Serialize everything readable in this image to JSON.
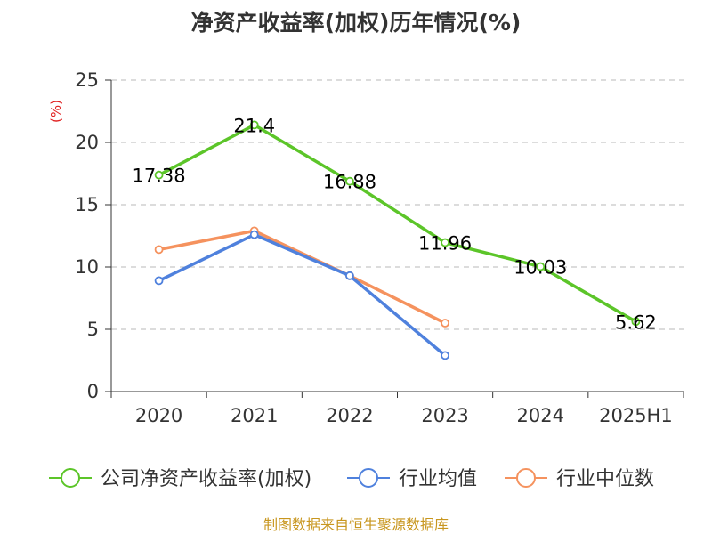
{
  "title": "净资产收益率(加权)历年情况(%)",
  "source": "制图数据来自恒生聚源数据库",
  "chart_data": {
    "type": "line",
    "ylabel": "(%)",
    "xlabel": "",
    "ylim": [
      0,
      25
    ],
    "yticks": [
      0,
      5,
      10,
      15,
      20,
      25
    ],
    "categories": [
      "2020",
      "2021",
      "2022",
      "2023",
      "2024",
      "2025H1"
    ],
    "grid": true,
    "legend_position": "bottom",
    "series": [
      {
        "name": "公司净资产收益率(加权)",
        "color": "#5cc529",
        "values": [
          17.38,
          21.4,
          16.88,
          11.96,
          10.03,
          5.62
        ],
        "show_labels": true
      },
      {
        "name": "行业均值",
        "color": "#4f81dd",
        "values": [
          8.9,
          12.6,
          9.3,
          2.9,
          null,
          null
        ],
        "show_labels": false
      },
      {
        "name": "行业中位数",
        "color": "#f5925e",
        "values": [
          11.4,
          12.9,
          9.3,
          5.5,
          null,
          null
        ],
        "show_labels": false
      }
    ]
  }
}
